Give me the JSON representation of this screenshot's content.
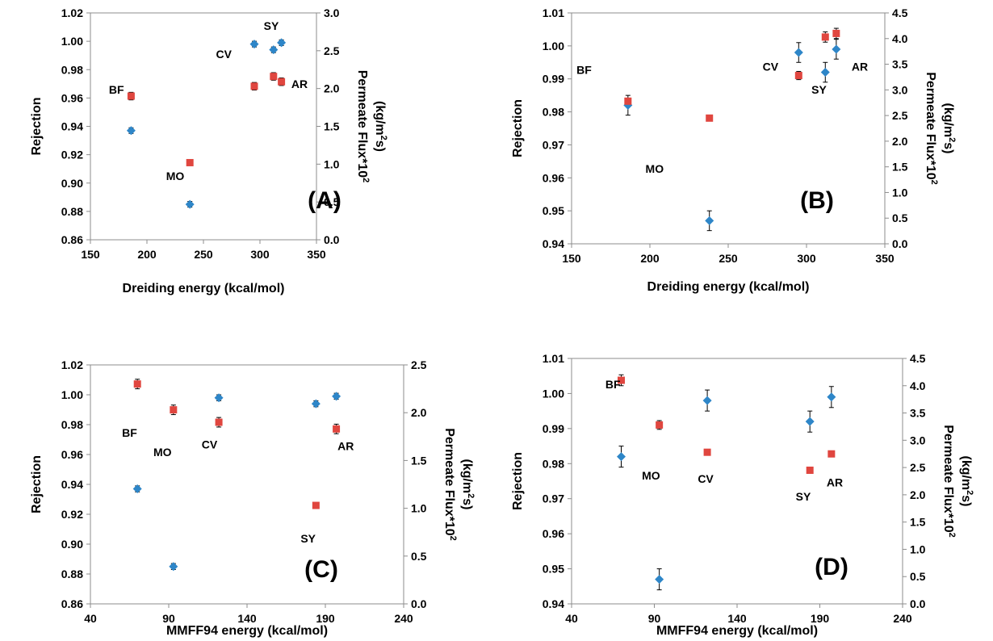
{
  "chart_data": [
    {
      "type": "scatter",
      "panel_label": "(A)",
      "xlabel": "Dreiding energy (kcal/mol)",
      "ylabel": "Rejection",
      "y2label": [
        "Permeate Flux*10",
        "2",
        "(kg/m",
        "2",
        "s)"
      ],
      "xlim": [
        150,
        350
      ],
      "xticks": [
        150,
        200,
        250,
        300,
        350
      ],
      "xdec": 0,
      "ylim": [
        0.86,
        1.02
      ],
      "yticks": [
        0.86,
        0.88,
        0.9,
        0.92,
        0.94,
        0.96,
        0.98,
        1.0,
        1.02
      ],
      "ydec": 2,
      "y2lim": [
        0.0,
        3.0
      ],
      "y2ticks": [
        0.0,
        0.5,
        1.0,
        1.5,
        2.0,
        2.5,
        3.0
      ],
      "y2dec": 1,
      "series": [
        {
          "kind": "rejection",
          "axis": "left",
          "marker": "diamond",
          "color": "#2e86c8",
          "points": [
            {
              "x": 186,
              "y": 0.937,
              "err": 0.002
            },
            {
              "x": 238,
              "y": 0.885,
              "err": 0.002
            },
            {
              "x": 295,
              "y": 0.998,
              "err": 0.002
            },
            {
              "x": 312,
              "y": 0.994,
              "err": 0.002
            },
            {
              "x": 319,
              "y": 0.999,
              "err": 0.002
            }
          ]
        },
        {
          "kind": "flux",
          "axis": "right",
          "marker": "square",
          "color": "#e0463f",
          "points": [
            {
              "x": 186,
              "y": 1.9,
              "err": 0.05
            },
            {
              "x": 238,
              "y": 1.02,
              "err": 0.0
            },
            {
              "x": 295,
              "y": 2.03,
              "err": 0.05
            },
            {
              "x": 312,
              "y": 2.16,
              "err": 0.05
            },
            {
              "x": 319,
              "y": 2.09,
              "err": 0.05
            }
          ]
        }
      ],
      "annotations": [
        {
          "text": "BF",
          "x": 173,
          "y": 0.963
        },
        {
          "text": "MO",
          "x": 225,
          "y": 0.902
        },
        {
          "text": "CV",
          "x": 268,
          "y": 0.988
        },
        {
          "text": "SY",
          "x": 310,
          "y": 1.008
        },
        {
          "text": "AR",
          "x": 335,
          "y": 0.967
        }
      ]
    },
    {
      "type": "scatter",
      "panel_label": "(B)",
      "xlabel": "Dreiding energy (kcal/mol)",
      "ylabel": "Rejection",
      "y2label": [
        "Permeate Flux*10",
        "2",
        "(kg/m",
        "2",
        "s)"
      ],
      "xlim": [
        150,
        350
      ],
      "xticks": [
        150,
        200,
        250,
        300,
        350
      ],
      "xdec": 0,
      "ylim": [
        0.94,
        1.01
      ],
      "yticks": [
        0.94,
        0.95,
        0.96,
        0.97,
        0.98,
        0.99,
        1.0,
        1.01
      ],
      "ydec": 2,
      "y2lim": [
        0.0,
        4.5
      ],
      "y2ticks": [
        0.0,
        0.5,
        1.0,
        1.5,
        2.0,
        2.5,
        3.0,
        3.5,
        4.0,
        4.5
      ],
      "y2dec": 1,
      "series": [
        {
          "kind": "rejection",
          "axis": "left",
          "marker": "diamond",
          "color": "#2e86c8",
          "points": [
            {
              "x": 186,
              "y": 0.982,
              "err": 0.003
            },
            {
              "x": 238,
              "y": 0.947,
              "err": 0.003
            },
            {
              "x": 295,
              "y": 0.998,
              "err": 0.003
            },
            {
              "x": 312,
              "y": 0.992,
              "err": 0.003
            },
            {
              "x": 319,
              "y": 0.999,
              "err": 0.003
            }
          ]
        },
        {
          "kind": "flux",
          "axis": "right",
          "marker": "square",
          "color": "#e0463f",
          "points": [
            {
              "x": 186,
              "y": 2.78,
              "err": 0.05
            },
            {
              "x": 238,
              "y": 2.45,
              "err": 0.05
            },
            {
              "x": 295,
              "y": 3.28,
              "err": 0.08
            },
            {
              "x": 312,
              "y": 4.03,
              "err": 0.1
            },
            {
              "x": 319,
              "y": 4.1,
              "err": 0.1
            }
          ]
        }
      ],
      "annotations": [
        {
          "text": "BF",
          "x": 158,
          "y": 0.9915
        },
        {
          "text": "MO",
          "x": 203,
          "y": 0.9615
        },
        {
          "text": "CV",
          "x": 277,
          "y": 0.9925
        },
        {
          "text": "SY",
          "x": 308,
          "y": 0.9855
        },
        {
          "text": "AR",
          "x": 334,
          "y": 0.9925
        }
      ]
    },
    {
      "type": "scatter",
      "panel_label": "(C)",
      "xlabel": "MMFF94 energy (kcal/mol)",
      "ylabel": "Rejection",
      "y2label": [
        "Permeate Flux*10",
        "2",
        "(kg/m",
        "2",
        "s)"
      ],
      "xlim": [
        40,
        240
      ],
      "xticks": [
        40,
        90,
        140,
        190,
        240
      ],
      "xdec": 0,
      "ylim": [
        0.86,
        1.02
      ],
      "yticks": [
        0.86,
        0.88,
        0.9,
        0.92,
        0.94,
        0.96,
        0.98,
        1.0,
        1.02
      ],
      "ydec": 2,
      "y2lim": [
        0.0,
        2.5
      ],
      "y2ticks": [
        0.0,
        0.5,
        1.0,
        1.5,
        2.0,
        2.5
      ],
      "y2dec": 1,
      "series": [
        {
          "kind": "rejection",
          "axis": "left",
          "marker": "diamond",
          "color": "#2e86c8",
          "points": [
            {
              "x": 70,
              "y": 0.937,
              "err": 0.002
            },
            {
              "x": 93,
              "y": 0.885,
              "err": 0.002
            },
            {
              "x": 122,
              "y": 0.998,
              "err": 0.002
            },
            {
              "x": 184,
              "y": 0.994,
              "err": 0.002
            },
            {
              "x": 197,
              "y": 0.999,
              "err": 0.002
            }
          ]
        },
        {
          "kind": "flux",
          "axis": "right",
          "marker": "square",
          "color": "#e0463f",
          "points": [
            {
              "x": 70,
              "y": 2.3,
              "err": 0.05
            },
            {
              "x": 93,
              "y": 2.03,
              "err": 0.05
            },
            {
              "x": 122,
              "y": 1.9,
              "err": 0.05
            },
            {
              "x": 184,
              "y": 1.03,
              "err": 0.0
            },
            {
              "x": 197,
              "y": 1.83,
              "err": 0.05
            }
          ]
        }
      ],
      "annotations": [
        {
          "text": "BF",
          "x": 65,
          "y": 0.972
        },
        {
          "text": "MO",
          "x": 86,
          "y": 0.959
        },
        {
          "text": "CV",
          "x": 116,
          "y": 0.964
        },
        {
          "text": "AR",
          "x": 203,
          "y": 0.963
        },
        {
          "text": "SY",
          "x": 179,
          "y": 0.901
        }
      ]
    },
    {
      "type": "scatter",
      "panel_label": "(D)",
      "xlabel": "MMFF94 energy (kcal/mol)",
      "ylabel": "Rejection",
      "y2label": [
        "Permeate Flux*10",
        "2",
        "(kg/m",
        "2",
        "s)"
      ],
      "xlim": [
        40,
        240
      ],
      "xticks": [
        40,
        90,
        140,
        190,
        240
      ],
      "xdec": 0,
      "ylim": [
        0.94,
        1.01
      ],
      "yticks": [
        0.94,
        0.95,
        0.96,
        0.97,
        0.98,
        0.99,
        1.0,
        1.01
      ],
      "ydec": 2,
      "y2lim": [
        0.0,
        4.5
      ],
      "y2ticks": [
        0.0,
        0.5,
        1.0,
        1.5,
        2.0,
        2.5,
        3.0,
        3.5,
        4.0,
        4.5
      ],
      "y2dec": 1,
      "series": [
        {
          "kind": "rejection",
          "axis": "left",
          "marker": "diamond",
          "color": "#2e86c8",
          "points": [
            {
              "x": 70,
              "y": 0.982,
              "err": 0.003
            },
            {
              "x": 93,
              "y": 0.947,
              "err": 0.003
            },
            {
              "x": 122,
              "y": 0.998,
              "err": 0.003
            },
            {
              "x": 184,
              "y": 0.992,
              "err": 0.003
            },
            {
              "x": 197,
              "y": 0.999,
              "err": 0.003
            }
          ]
        },
        {
          "kind": "flux",
          "axis": "right",
          "marker": "square",
          "color": "#e0463f",
          "points": [
            {
              "x": 70,
              "y": 4.1,
              "err": 0.1
            },
            {
              "x": 93,
              "y": 3.28,
              "err": 0.08
            },
            {
              "x": 122,
              "y": 2.78,
              "err": 0.05
            },
            {
              "x": 184,
              "y": 2.45,
              "err": 0.05
            },
            {
              "x": 197,
              "y": 2.75,
              "err": 0.05
            }
          ]
        }
      ],
      "annotations": [
        {
          "text": "BF",
          "x": 65,
          "y": 1.0015
        },
        {
          "text": "MO",
          "x": 88,
          "y": 0.9755
        },
        {
          "text": "CV",
          "x": 121,
          "y": 0.9745
        },
        {
          "text": "SY",
          "x": 180,
          "y": 0.9695
        },
        {
          "text": "AR",
          "x": 199,
          "y": 0.9735
        }
      ]
    }
  ]
}
